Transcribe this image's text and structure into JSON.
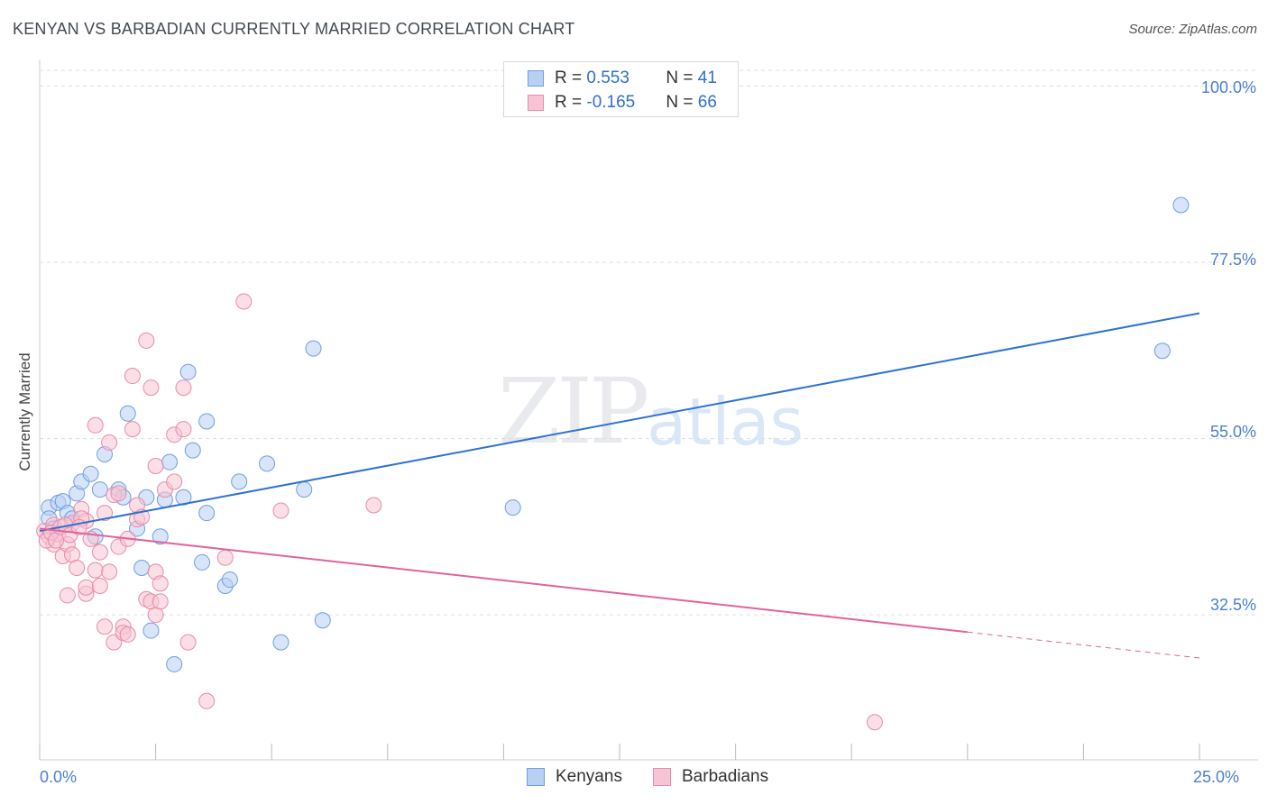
{
  "title": "KENYAN VS BARBADIAN CURRENTLY MARRIED CORRELATION CHART",
  "source": "Source: ZipAtlas.com",
  "watermark": {
    "zip": "ZIP",
    "atlas": "atlas"
  },
  "colors": {
    "blue_fill": "#b8d0f2",
    "blue_stroke": "#6f9ee0",
    "blue_line": "#2d72d2",
    "pink_fill": "#f6c4d4",
    "pink_stroke": "#e98aaa",
    "pink_line": "#e0649a",
    "grid": "#dddddd",
    "tick_text": "#4a7fd0"
  },
  "legend": {
    "rows": [
      {
        "r_label": "R = ",
        "r_value": "0.553",
        "n_label": "N = ",
        "n_value": "41"
      },
      {
        "r_label": "R = ",
        "r_value": "-0.165",
        "n_label": "N = ",
        "n_value": "66"
      }
    ]
  },
  "chart_data": {
    "type": "scatter",
    "title": "KENYAN VS BARBADIAN CURRENTLY MARRIED CORRELATION CHART",
    "xlabel": "",
    "ylabel": "Currently Married",
    "xlim": [
      0,
      25
    ],
    "ylim": [
      14,
      102
    ],
    "x_tick_labels": [
      "0.0%",
      "25.0%"
    ],
    "y_ticks": [
      32.5,
      55.0,
      77.5,
      100.0
    ],
    "y_tick_labels": [
      "32.5%",
      "55.0%",
      "77.5%",
      "100.0%"
    ],
    "grid": true,
    "series": [
      {
        "name": "Kenyans",
        "color": "#6f9ee0",
        "points": [
          [
            0.2,
            46.2
          ],
          [
            0.2,
            44.8
          ],
          [
            0.3,
            43.5
          ],
          [
            0.4,
            46.8
          ],
          [
            0.5,
            47.0
          ],
          [
            0.6,
            45.5
          ],
          [
            0.7,
            44.8
          ],
          [
            0.8,
            48.0
          ],
          [
            0.9,
            49.5
          ],
          [
            1.1,
            50.5
          ],
          [
            1.2,
            42.5
          ],
          [
            1.3,
            48.5
          ],
          [
            1.4,
            53.0
          ],
          [
            1.7,
            48.5
          ],
          [
            1.8,
            47.5
          ],
          [
            1.9,
            58.2
          ],
          [
            2.1,
            43.5
          ],
          [
            2.2,
            38.5
          ],
          [
            2.3,
            47.5
          ],
          [
            2.4,
            30.5
          ],
          [
            2.6,
            42.5
          ],
          [
            2.7,
            47.2
          ],
          [
            2.8,
            52.0
          ],
          [
            2.9,
            26.2
          ],
          [
            3.1,
            47.5
          ],
          [
            3.2,
            63.5
          ],
          [
            3.3,
            53.5
          ],
          [
            3.5,
            39.2
          ],
          [
            3.6,
            45.5
          ],
          [
            3.6,
            57.2
          ],
          [
            4.0,
            36.2
          ],
          [
            4.1,
            37.0
          ],
          [
            4.3,
            49.5
          ],
          [
            4.9,
            51.8
          ],
          [
            5.2,
            29.0
          ],
          [
            5.7,
            48.5
          ],
          [
            5.9,
            66.5
          ],
          [
            6.1,
            31.8
          ],
          [
            10.2,
            46.2
          ],
          [
            24.2,
            66.2
          ],
          [
            24.6,
            84.8
          ]
        ]
      },
      {
        "name": "Barbadians",
        "color": "#e98aaa",
        "points": [
          [
            0.1,
            43.2
          ],
          [
            0.2,
            42.5
          ],
          [
            0.3,
            44.0
          ],
          [
            0.3,
            41.5
          ],
          [
            0.4,
            42.8
          ],
          [
            0.5,
            40.0
          ],
          [
            0.6,
            41.5
          ],
          [
            0.6,
            35.0
          ],
          [
            0.7,
            44.2
          ],
          [
            0.7,
            40.2
          ],
          [
            0.8,
            38.5
          ],
          [
            0.9,
            46.0
          ],
          [
            1.0,
            35.2
          ],
          [
            1.0,
            36.0
          ],
          [
            1.0,
            44.5
          ],
          [
            0.9,
            44.8
          ],
          [
            1.1,
            42.2
          ],
          [
            1.2,
            38.2
          ],
          [
            1.2,
            56.7
          ],
          [
            1.3,
            40.5
          ],
          [
            1.3,
            36.2
          ],
          [
            1.4,
            31.0
          ],
          [
            1.4,
            45.5
          ],
          [
            1.5,
            54.5
          ],
          [
            1.5,
            38.0
          ],
          [
            1.6,
            29.0
          ],
          [
            1.6,
            47.8
          ],
          [
            1.7,
            41.2
          ],
          [
            1.7,
            48.0
          ],
          [
            1.8,
            31.0
          ],
          [
            1.8,
            30.2
          ],
          [
            1.9,
            30.0
          ],
          [
            1.9,
            42.2
          ],
          [
            2.0,
            63.0
          ],
          [
            2.0,
            56.2
          ],
          [
            2.1,
            46.5
          ],
          [
            2.1,
            44.7
          ],
          [
            2.2,
            45.0
          ],
          [
            2.3,
            67.5
          ],
          [
            2.3,
            34.5
          ],
          [
            2.4,
            61.5
          ],
          [
            2.4,
            34.2
          ],
          [
            2.5,
            32.5
          ],
          [
            2.5,
            51.5
          ],
          [
            2.5,
            38.0
          ],
          [
            2.6,
            36.5
          ],
          [
            2.6,
            34.2
          ],
          [
            2.7,
            48.5
          ],
          [
            2.9,
            55.5
          ],
          [
            2.9,
            49.5
          ],
          [
            3.1,
            61.5
          ],
          [
            3.1,
            56.2
          ],
          [
            3.2,
            29.0
          ],
          [
            3.6,
            21.5
          ],
          [
            4.0,
            39.8
          ],
          [
            4.4,
            72.5
          ],
          [
            5.2,
            45.8
          ],
          [
            7.2,
            46.5
          ],
          [
            18.0,
            18.8
          ],
          [
            0.15,
            42.0
          ],
          [
            0.25,
            43.0
          ],
          [
            0.35,
            42.0
          ],
          [
            0.45,
            43.7
          ],
          [
            0.55,
            44.0
          ],
          [
            0.65,
            42.7
          ],
          [
            0.85,
            43.7
          ]
        ]
      }
    ],
    "trendlines": [
      {
        "series": "Kenyans",
        "x": [
          0,
          25
        ],
        "y": [
          43.2,
          71.0
        ],
        "style": "solid"
      },
      {
        "series": "Barbadians",
        "x": [
          0,
          20.0
        ],
        "y": [
          43.5,
          30.3
        ],
        "style": "solid"
      },
      {
        "series": "Barbadians",
        "x": [
          20.0,
          25
        ],
        "y": [
          30.3,
          27.0
        ],
        "style": "dashed"
      }
    ]
  }
}
